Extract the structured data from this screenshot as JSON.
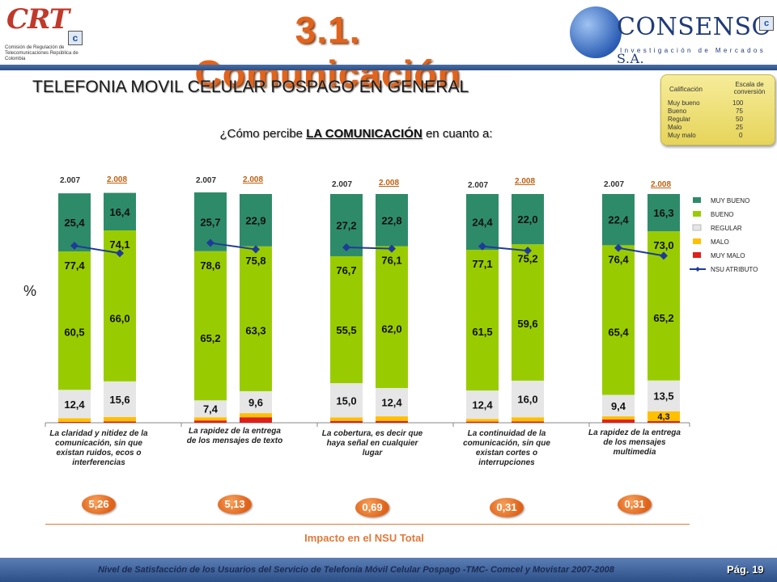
{
  "header": {
    "logo_left": {
      "text": "CRT",
      "sub": "Comisión de Regulación de Telecomunicaciones República de Colombia"
    },
    "title": "3.1. Comunicación",
    "logo_right": {
      "brand": "CONSENSO",
      "suffix": "S.A.",
      "tagline": "Investigación de Mercados"
    }
  },
  "section_title": "TELEFONIA MOVIL CELULAR POSPAGO EN GENERAL",
  "question": {
    "prefix": "¿Cómo percibe ",
    "bold": "LA COMUNICACIÓN",
    "suffix": " en cuanto a:"
  },
  "scale_box": {
    "col1": "Calificación",
    "col2": "Escala de conversión",
    "rows": [
      {
        "label": "Muy bueno",
        "value": "100"
      },
      {
        "label": "Bueno",
        "value": "75"
      },
      {
        "label": "Regular",
        "value": "50"
      },
      {
        "label": "Malo",
        "value": "25"
      },
      {
        "label": "Muy malo",
        "value": "0"
      }
    ]
  },
  "colors": {
    "muy_bueno": "#2e8b6a",
    "bueno": "#99cc00",
    "regular": "#e6e6e6",
    "malo": "#ffc000",
    "muy_malo": "#e0201b",
    "nsu": "#1f3b9a",
    "year_2008": "#c06010"
  },
  "chart_data": {
    "type": "bar",
    "stacked": true,
    "y_axis_label": "%",
    "groups": [
      {
        "category": "La claridad y nitidez de la comunicación, sin que existan ruidos, ecos o interferencias",
        "impact": "5,26",
        "bars": [
          {
            "year": "2.007",
            "muy_malo": 0.4,
            "malo": 1.6,
            "regular": 12.4,
            "bueno": 60.5,
            "muy_bueno": 25.4,
            "nsu": "77,4",
            "labels": {
              "regular": "12,4",
              "bueno": "60,5",
              "muy_bueno": "25,4"
            }
          },
          {
            "year": "2.008",
            "muy_malo": 0.6,
            "malo": 1.9,
            "regular": 15.6,
            "bueno": 66.0,
            "muy_bueno": 16.4,
            "nsu": "74,1",
            "labels": {
              "regular": "15,6",
              "bueno": "66,0",
              "muy_bueno": "16,4"
            }
          }
        ]
      },
      {
        "category": "La rapidez de la entrega de los mensajes de texto",
        "impact": "5,13",
        "bars": [
          {
            "year": "2.007",
            "muy_malo": 1.0,
            "malo": 1.4,
            "regular": 7.4,
            "bueno": 65.2,
            "muy_bueno": 25.7,
            "nsu": "78,6",
            "labels": {
              "regular": "7,4",
              "bueno": "65,2",
              "muy_bueno": "25,7"
            }
          },
          {
            "year": "2.008",
            "muy_malo": 2.4,
            "malo": 1.8,
            "regular": 9.6,
            "bueno": 63.3,
            "muy_bueno": 22.9,
            "nsu": "75,8",
            "labels": {
              "regular": "9,6",
              "bueno": "63,3",
              "muy_bueno": "22,9"
            }
          }
        ]
      },
      {
        "category": "La cobertura, es decir que haya señal en cualquier lugar",
        "impact": "0,69",
        "bars": [
          {
            "year": "2.007",
            "muy_malo": 0.8,
            "malo": 1.5,
            "regular": 15.0,
            "bueno": 55.5,
            "muy_bueno": 27.2,
            "nsu": "76,7",
            "labels": {
              "regular": "15,0",
              "bueno": "55,5",
              "muy_bueno": "27,2"
            }
          },
          {
            "year": "2.008",
            "muy_malo": 0.8,
            "malo": 2.0,
            "regular": 12.4,
            "bueno": 62.0,
            "muy_bueno": 22.8,
            "nsu": "76,1",
            "labels": {
              "regular": "12,4",
              "bueno": "62,0",
              "muy_bueno": "22,8"
            }
          }
        ]
      },
      {
        "category": "La continuidad de la comunicación, sin que existan cortes o interrupciones",
        "impact": "0,31",
        "bars": [
          {
            "year": "2.007",
            "muy_malo": 0.5,
            "malo": 1.2,
            "regular": 12.4,
            "bueno": 61.5,
            "muy_bueno": 24.4,
            "nsu": "77,1",
            "labels": {
              "regular": "12,4",
              "bueno": "61,5",
              "muy_bueno": "24,4"
            }
          },
          {
            "year": "2.008",
            "muy_malo": 0.6,
            "malo": 1.8,
            "regular": 16.0,
            "bueno": 59.6,
            "muy_bueno": 22.0,
            "nsu": "75,2",
            "labels": {
              "regular": "16,0",
              "bueno": "59,6",
              "muy_bueno": "22,0"
            }
          }
        ]
      },
      {
        "category": "La rapidez de la entrega de los mensajes multimedia",
        "impact": "0,31",
        "bars": [
          {
            "year": "2.007",
            "muy_malo": 1.4,
            "malo": 1.4,
            "regular": 9.4,
            "bueno": 65.4,
            "muy_bueno": 22.4,
            "nsu": "76,4",
            "labels": {
              "regular": "9,4",
              "bueno": "65,4",
              "muy_bueno": "22,4"
            }
          },
          {
            "year": "2.008",
            "muy_malo": 0.7,
            "malo": 4.3,
            "regular": 13.5,
            "bueno": 65.2,
            "muy_bueno": 16.3,
            "nsu": "73,0",
            "labels": {
              "malo": "4,3",
              "regular": "13,5",
              "bueno": "65,2",
              "muy_bueno": "16,3"
            }
          }
        ]
      }
    ],
    "legend": [
      "MUY BUENO",
      "BUENO",
      "REGULAR",
      "MALO",
      "MUY MALO",
      "NSU ATRIBUTO"
    ],
    "legend_position": "right"
  },
  "impact_title": "Impacto en el NSU Total",
  "footer": {
    "text": "Nivel de Satisfacción de los Usuarios del Servicio de Telefonía Móvil Celular Pospago -TMC- Comcel y Movistar 2007-2008",
    "page": "Pág. 19"
  }
}
